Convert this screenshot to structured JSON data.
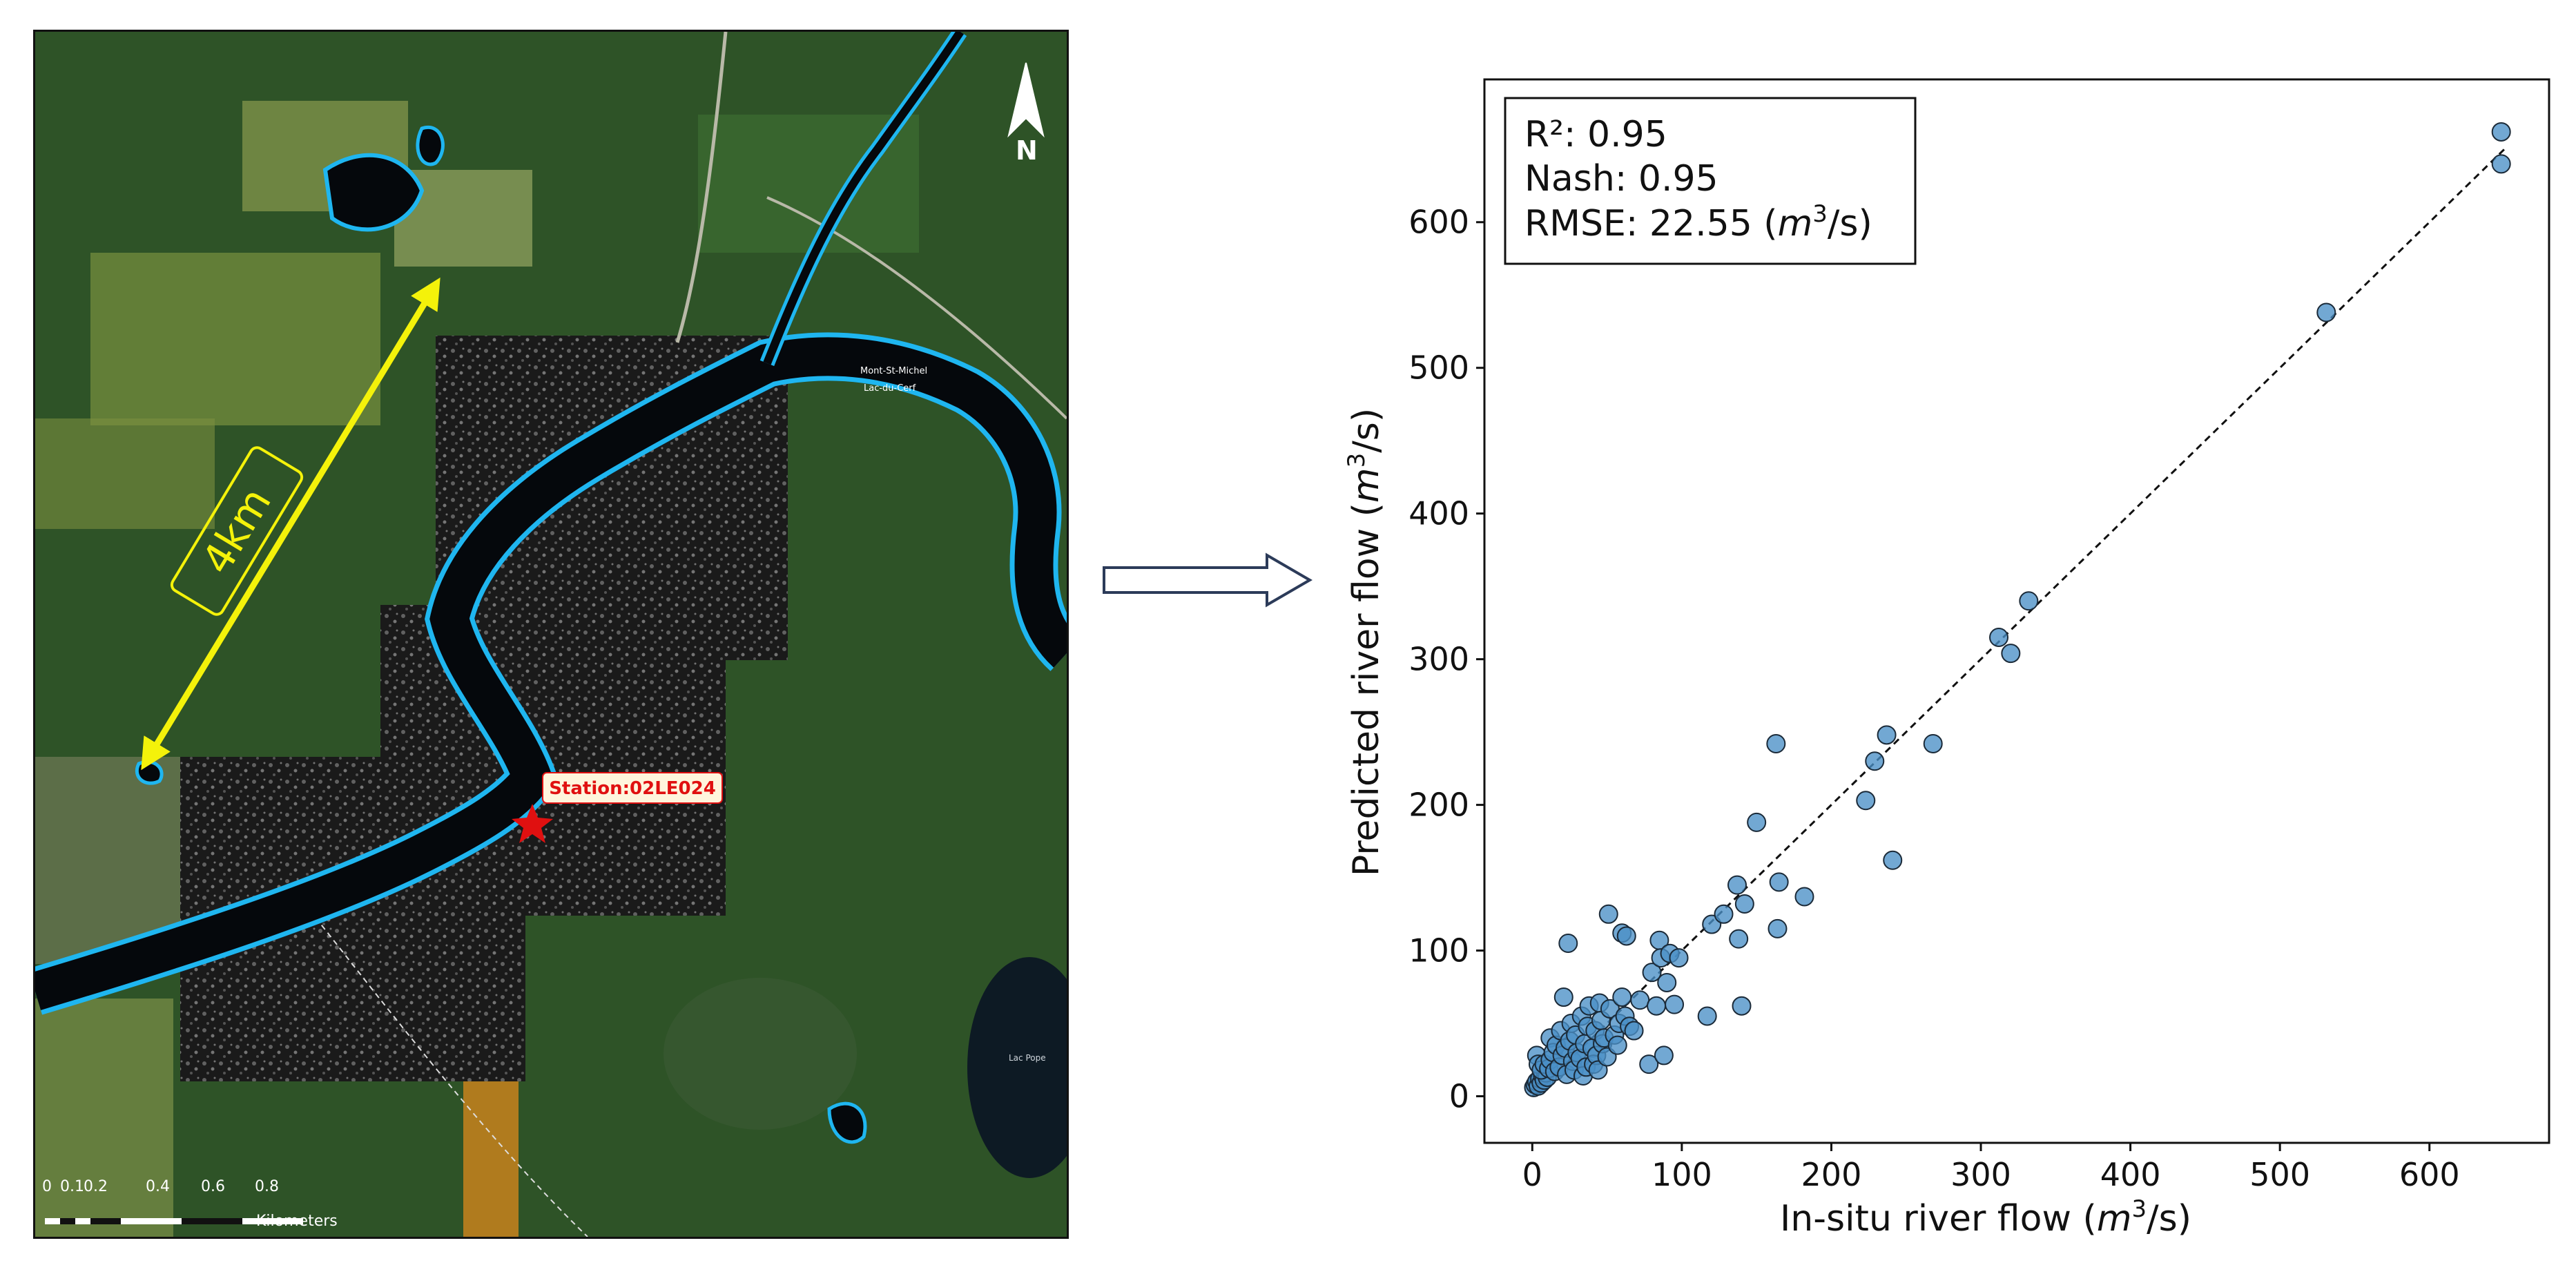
{
  "map": {
    "north_label": "N",
    "distance_label": "4km",
    "station_label": "Station:02LE024",
    "place_labels": [
      "Mont-St-Michel",
      "Lac-du-Cerf",
      "Lac Pope"
    ],
    "scale_ticks": [
      "0",
      "0.1",
      "0.2",
      "0.4",
      "0.6",
      "0.8"
    ],
    "scale_unit": "Kilometers",
    "colors": {
      "river_outline": "#1fb6f0",
      "distance_arrow": "#f4f20a",
      "station_marker": "#e01010"
    }
  },
  "flow_arrow": {
    "icon": "right-arrow-icon"
  },
  "stats": {
    "r2": "R²: 0.95",
    "nash": "Nash: 0.95",
    "rmse_prefix": "RMSE: 22.55 (",
    "rmse_unit_m": "m",
    "rmse_unit_exp": "3",
    "rmse_suffix": "/s)"
  },
  "chart_data": {
    "type": "scatter",
    "xlabel": "In-situ river flow (m³/s)",
    "ylabel": "Predicted river flow (m³/s)",
    "xlabel_parts": {
      "prefix": "In-situ river flow (",
      "m": "m",
      "exp": "3",
      "suffix": "/s)"
    },
    "ylabel_parts": {
      "prefix": "Predicted river flow (",
      "m": "m",
      "exp": "3",
      "suffix": "/s)"
    },
    "xlim": [
      -32,
      680
    ],
    "ylim": [
      -32,
      698
    ],
    "xticks": [
      0,
      100,
      200,
      300,
      400,
      500,
      600
    ],
    "yticks": [
      0,
      100,
      200,
      300,
      400,
      500,
      600
    ],
    "grid": false,
    "reference_line": {
      "style": "dashed",
      "x": [
        0,
        650
      ],
      "y": [
        0,
        650
      ]
    },
    "marker_color": "#4a90c6",
    "points": [
      [
        1,
        6
      ],
      [
        2,
        8
      ],
      [
        3,
        10
      ],
      [
        4,
        7
      ],
      [
        5,
        12
      ],
      [
        6,
        9
      ],
      [
        7,
        14
      ],
      [
        8,
        11
      ],
      [
        9,
        16
      ],
      [
        10,
        13
      ],
      [
        3,
        28
      ],
      [
        4,
        22
      ],
      [
        6,
        18
      ],
      [
        8,
        22
      ],
      [
        11,
        19
      ],
      [
        12,
        25
      ],
      [
        12,
        40
      ],
      [
        14,
        30
      ],
      [
        15,
        17
      ],
      [
        16,
        35
      ],
      [
        18,
        20
      ],
      [
        19,
        45
      ],
      [
        20,
        28
      ],
      [
        21,
        68
      ],
      [
        22,
        33
      ],
      [
        23,
        15
      ],
      [
        24,
        105
      ],
      [
        25,
        38
      ],
      [
        26,
        50
      ],
      [
        27,
        24
      ],
      [
        28,
        18
      ],
      [
        29,
        42
      ],
      [
        30,
        30
      ],
      [
        32,
        26
      ],
      [
        33,
        55
      ],
      [
        34,
        14
      ],
      [
        35,
        36
      ],
      [
        36,
        20
      ],
      [
        37,
        48
      ],
      [
        38,
        62
      ],
      [
        40,
        33
      ],
      [
        41,
        22
      ],
      [
        42,
        45
      ],
      [
        43,
        28
      ],
      [
        44,
        18
      ],
      [
        45,
        64
      ],
      [
        46,
        52
      ],
      [
        47,
        36
      ],
      [
        48,
        40
      ],
      [
        50,
        27
      ],
      [
        51,
        125
      ],
      [
        52,
        60
      ],
      [
        55,
        42
      ],
      [
        57,
        35
      ],
      [
        58,
        50
      ],
      [
        60,
        68
      ],
      [
        60,
        112
      ],
      [
        62,
        55
      ],
      [
        63,
        110
      ],
      [
        65,
        48
      ],
      [
        68,
        45
      ],
      [
        72,
        66
      ],
      [
        78,
        22
      ],
      [
        80,
        85
      ],
      [
        83,
        62
      ],
      [
        85,
        107
      ],
      [
        86,
        95
      ],
      [
        88,
        28
      ],
      [
        90,
        78
      ],
      [
        92,
        98
      ],
      [
        95,
        63
      ],
      [
        98,
        95
      ],
      [
        117,
        55
      ],
      [
        120,
        118
      ],
      [
        128,
        125
      ],
      [
        137,
        145
      ],
      [
        138,
        108
      ],
      [
        140,
        62
      ],
      [
        142,
        132
      ],
      [
        150,
        188
      ],
      [
        163,
        242
      ],
      [
        164,
        115
      ],
      [
        165,
        147
      ],
      [
        182,
        137
      ],
      [
        223,
        203
      ],
      [
        229,
        230
      ],
      [
        237,
        248
      ],
      [
        241,
        162
      ],
      [
        268,
        242
      ],
      [
        312,
        315
      ],
      [
        320,
        304
      ],
      [
        332,
        340
      ],
      [
        531,
        538
      ],
      [
        648,
        662
      ],
      [
        648,
        640
      ]
    ]
  }
}
